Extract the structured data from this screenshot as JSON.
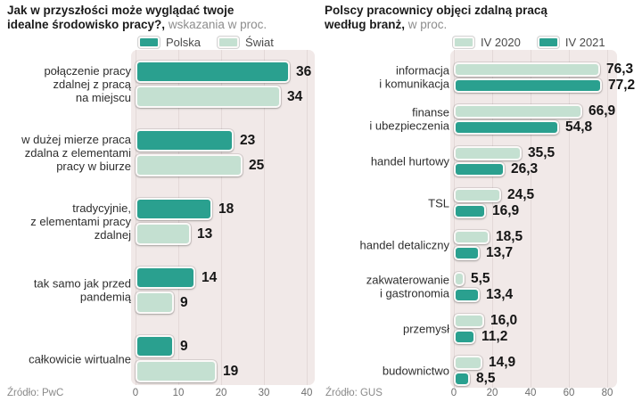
{
  "colors": {
    "series_dark": "#2aa08f",
    "series_light": "#c4e0d1",
    "plot_background": "#f1e9e8",
    "grid_line": "#e3d9d8",
    "title_text": "#1b1b1b",
    "subtitle_text": "#8d8d8d",
    "value_text": "#151515",
    "axis_text": "#6e6e6e"
  },
  "chart_data": [
    {
      "type": "bar",
      "orientation": "horizontal",
      "title": "Jak w przyszłości może wyglądać twoje\nidealne środowisko pracy?,",
      "subtitle": " wskazania w proc.",
      "source": "Źródło: PwC",
      "xlim": [
        0,
        40
      ],
      "ticks": [
        "0",
        "10",
        "20",
        "30",
        "40"
      ],
      "grid": true,
      "legend_position": "top",
      "legend": [
        {
          "label": "Polska",
          "color": "#2aa08f"
        },
        {
          "label": "Świat",
          "color": "#c4e0d1"
        }
      ],
      "categories": [
        "połączenie pracy\nzdalnej z pracą\nna miejscu",
        "w dużej mierze praca\nzdalna z elementami\npracy w biurze",
        "tradycyjnie,\nz elementami pracy\nzdalnej",
        "tak samo jak przed\npandemią",
        "całkowicie wirtualne"
      ],
      "series": [
        {
          "name": "Polska",
          "color": "#2aa08f",
          "values": [
            36,
            23,
            18,
            14,
            9
          ],
          "labels": [
            "36",
            "23",
            "18",
            "14",
            "9"
          ]
        },
        {
          "name": "Świat",
          "color": "#c4e0d1",
          "values": [
            34,
            25,
            13,
            9,
            19
          ],
          "labels": [
            "34",
            "25",
            "13",
            "9",
            "19"
          ]
        }
      ]
    },
    {
      "type": "bar",
      "orientation": "horizontal",
      "title": "Polscy pracownicy objęci zdalną pracą\nwedług branż,",
      "subtitle": " w proc.",
      "source": "Źródło: GUS",
      "xlim": [
        0,
        80
      ],
      "ticks": [
        "0",
        "20",
        "40",
        "60",
        "80"
      ],
      "grid": true,
      "legend_position": "top",
      "legend": [
        {
          "label": "IV 2020",
          "color": "#c4e0d1"
        },
        {
          "label": "IV 2021",
          "color": "#2aa08f"
        }
      ],
      "categories": [
        "informacja\ni komunikacja",
        "finanse\ni ubezpieczenia",
        "handel hurtowy",
        "TSL",
        "handel detaliczny",
        "zakwaterowanie\ni gastronomia",
        "przemysł",
        "budownictwo"
      ],
      "series": [
        {
          "name": "IV 2020",
          "color": "#c4e0d1",
          "values": [
            76.3,
            66.9,
            35.5,
            24.5,
            18.5,
            5.5,
            16.0,
            14.9
          ],
          "labels": [
            "76,3",
            "66,9",
            "35,5",
            "24,5",
            "18,5",
            "5,5",
            "16,0",
            "14,9"
          ]
        },
        {
          "name": "IV 2021",
          "color": "#2aa08f",
          "values": [
            77.2,
            54.8,
            26.3,
            16.9,
            13.7,
            13.4,
            11.2,
            8.5
          ],
          "labels": [
            "77,2",
            "54,8",
            "26,3",
            "16,9",
            "13,7",
            "13,4",
            "11,2",
            "8,5"
          ]
        }
      ]
    }
  ]
}
